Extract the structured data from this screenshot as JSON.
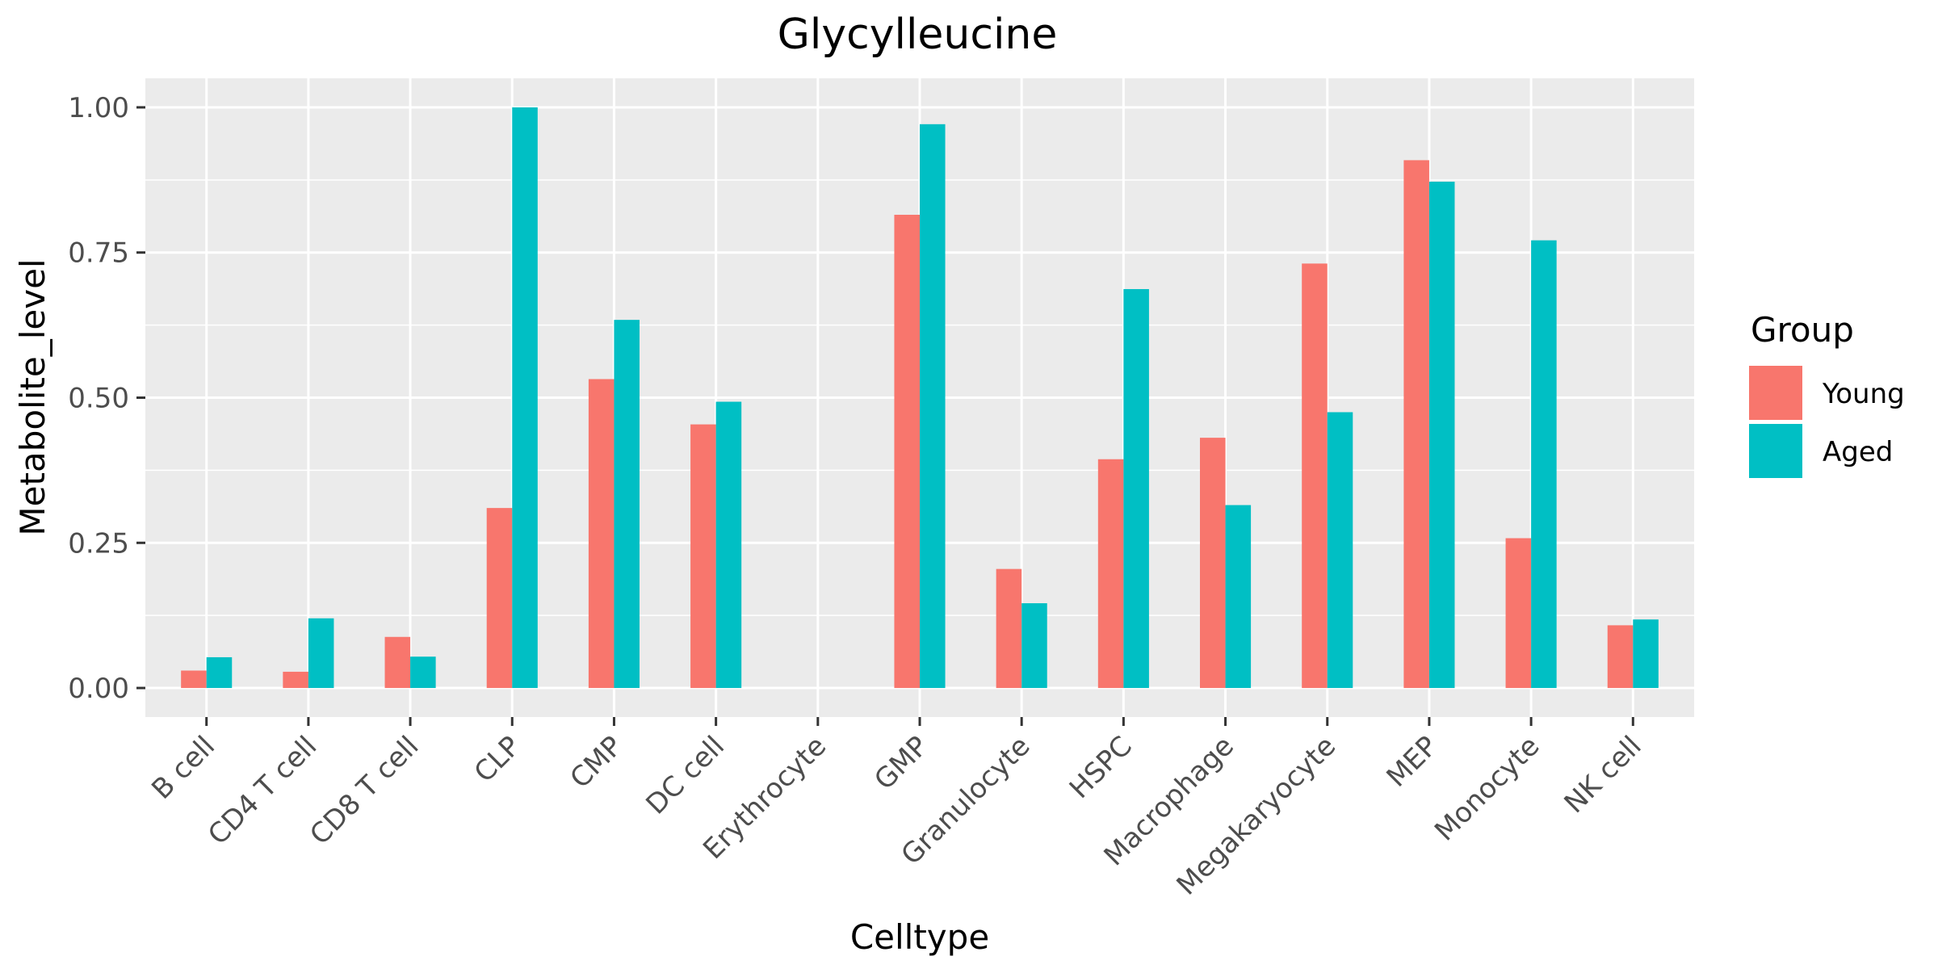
{
  "chart_data": {
    "type": "bar",
    "title": "Glycylleucine",
    "xlabel": "Celltype",
    "ylabel": "Metabolite_level",
    "categories": [
      "B cell",
      "CD4 T cell",
      "CD8 T cell",
      "CLP",
      "CMP",
      "DC cell",
      "Erythrocyte",
      "GMP",
      "Granulocyte",
      "HSPC",
      "Macrophage",
      "Megakaryocyte",
      "MEP",
      "Monocyte",
      "NK cell"
    ],
    "series": [
      {
        "name": "Young",
        "color": "#F8766D",
        "values": [
          0.03,
          0.028,
          0.088,
          0.31,
          0.532,
          0.454,
          0.0,
          0.815,
          0.205,
          0.394,
          0.431,
          0.731,
          0.909,
          0.258,
          0.108
        ]
      },
      {
        "name": "Aged",
        "color": "#00BFC4",
        "values": [
          0.053,
          0.12,
          0.054,
          1.0,
          0.634,
          0.493,
          0.0,
          0.971,
          0.146,
          0.687,
          0.315,
          0.475,
          0.872,
          0.771,
          0.118
        ]
      }
    ],
    "ylim": [
      -0.05,
      1.05
    ],
    "yticks": [
      0,
      0.25,
      0.5,
      0.75,
      1.0
    ],
    "ytick_labels": [
      "0.00",
      "0.25",
      "0.50",
      "0.75",
      "1.00"
    ],
    "grid": true,
    "panel_background": "#EBEBEB",
    "legend": {
      "title": "Group",
      "position": "right",
      "entries": [
        "Young",
        "Aged"
      ]
    }
  }
}
